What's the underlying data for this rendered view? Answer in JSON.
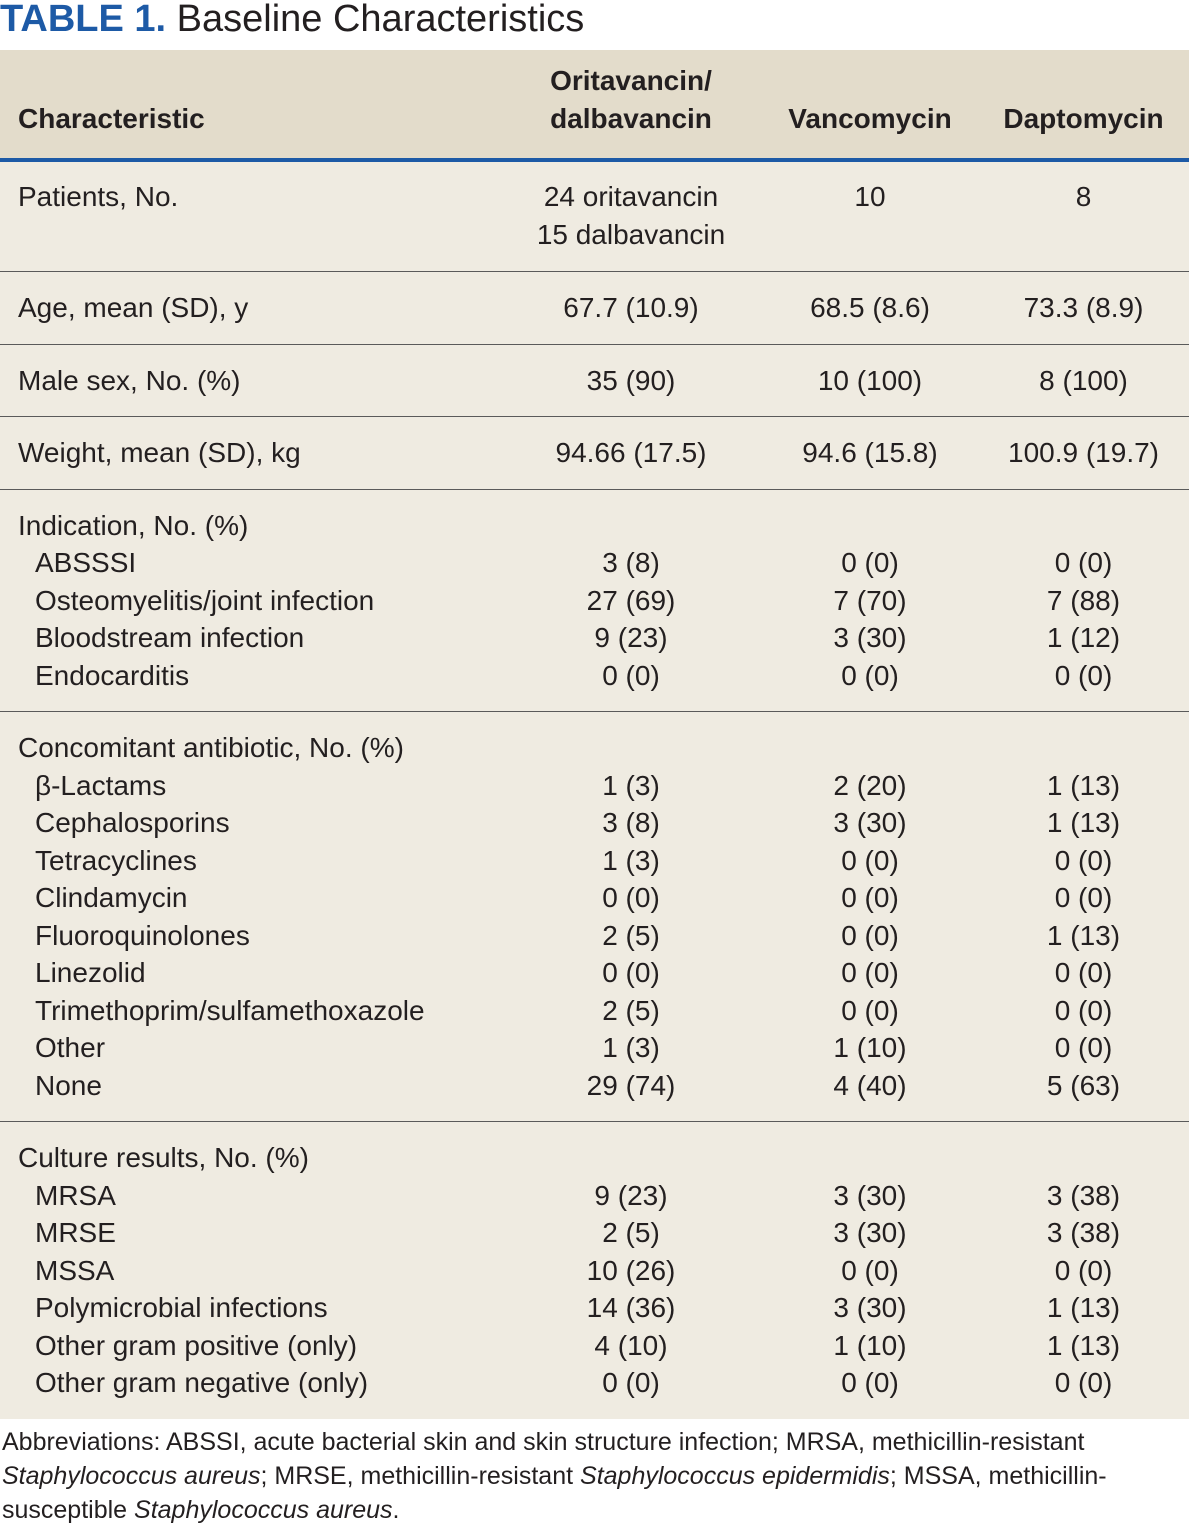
{
  "title": {
    "label": "TABLE 1.",
    "text": "Baseline Characteristics"
  },
  "columns": {
    "characteristic": "Characteristic",
    "oritavancin_line1": "Oritavancin/",
    "oritavancin_line2": "dalbavancin",
    "vancomycin": "Vancomycin",
    "daptomycin": "Daptomycin"
  },
  "patients": {
    "label": "Patients, No.",
    "orita_line1": "24 oritavancin",
    "orita_line2": "15 dalbavancin",
    "vanco": "10",
    "dapto": "8"
  },
  "age": {
    "label": "Age, mean (SD), y",
    "orita": "67.7 (10.9)",
    "vanco": "68.5 (8.6)",
    "dapto": "73.3 (8.9)"
  },
  "male": {
    "label": "Male sex, No. (%)",
    "orita": "35 (90)",
    "vanco": "10 (100)",
    "dapto": "8 (100)"
  },
  "weight": {
    "label": "Weight, mean (SD), kg",
    "orita": "94.66 (17.5)",
    "vanco": "94.6 (15.8)",
    "dapto": "100.9 (19.7)"
  },
  "indication": {
    "label": "Indication, No. (%)",
    "items": [
      {
        "label": "ABSSSI",
        "orita": "3 (8)",
        "vanco": "0 (0)",
        "dapto": "0 (0)"
      },
      {
        "label": "Osteomyelitis/joint infection",
        "orita": "27 (69)",
        "vanco": "7 (70)",
        "dapto": "7 (88)"
      },
      {
        "label": "Bloodstream infection",
        "orita": "9 (23)",
        "vanco": "3 (30)",
        "dapto": "1 (12)"
      },
      {
        "label": "Endocarditis",
        "orita": "0 (0)",
        "vanco": "0 (0)",
        "dapto": "0 (0)"
      }
    ]
  },
  "concomitant": {
    "label": "Concomitant antibiotic, No. (%)",
    "items": [
      {
        "label": "β-Lactams",
        "orita": "1 (3)",
        "vanco": "2 (20)",
        "dapto": "1 (13)"
      },
      {
        "label": "Cephalosporins",
        "orita": "3 (8)",
        "vanco": "3 (30)",
        "dapto": "1 (13)"
      },
      {
        "label": "Tetracyclines",
        "orita": "1 (3)",
        "vanco": "0 (0)",
        "dapto": "0 (0)"
      },
      {
        "label": "Clindamycin",
        "orita": "0 (0)",
        "vanco": "0 (0)",
        "dapto": "0 (0)"
      },
      {
        "label": "Fluoroquinolones",
        "orita": "2 (5)",
        "vanco": "0 (0)",
        "dapto": "1 (13)"
      },
      {
        "label": "Linezolid",
        "orita": "0 (0)",
        "vanco": "0 (0)",
        "dapto": "0 (0)"
      },
      {
        "label": "Trimethoprim/sulfamethoxazole",
        "orita": "2 (5)",
        "vanco": "0 (0)",
        "dapto": "0 (0)"
      },
      {
        "label": "Other",
        "orita": "1 (3)",
        "vanco": "1 (10)",
        "dapto": "0 (0)"
      },
      {
        "label": "None",
        "orita": "29 (74)",
        "vanco": "4 (40)",
        "dapto": "5 (63)"
      }
    ]
  },
  "culture": {
    "label": "Culture results, No. (%)",
    "items": [
      {
        "label": "MRSA",
        "orita": "9 (23)",
        "vanco": "3 (30)",
        "dapto": "3 (38)"
      },
      {
        "label": "MRSE",
        "orita": "2 (5)",
        "vanco": "3 (30)",
        "dapto": "3 (38)"
      },
      {
        "label": "MSSA",
        "orita": "10 (26)",
        "vanco": "0 (0)",
        "dapto": "0 (0)"
      },
      {
        "label": "Polymicrobial infections",
        "orita": "14 (36)",
        "vanco": "3 (30)",
        "dapto": "1 (13)"
      },
      {
        "label": "Other gram positive (only)",
        "orita": "4 (10)",
        "vanco": "1 (10)",
        "dapto": "1 (13)"
      },
      {
        "label": "Other gram negative (only)",
        "orita": "0 (0)",
        "vanco": "0 (0)",
        "dapto": "0 (0)"
      }
    ]
  },
  "footnote": {
    "p1": "Abbreviations: ABSSI, acute bacterial skin and skin structure infection; MRSA, methicillin-resistant ",
    "i1": "Staphylococcus aureus",
    "p2": "; MRSE, methicillin-resistant ",
    "i2": "Staphylococcus epidermidis",
    "p3": "; MSSA, methicillin-susceptible ",
    "i3": "Staphylococcus aureus",
    "p4": "."
  },
  "colors": {
    "accent": "#1d5aa6",
    "header_bg": "#e3dccb",
    "body_bg": "#efebe1",
    "text": "#231f20"
  }
}
